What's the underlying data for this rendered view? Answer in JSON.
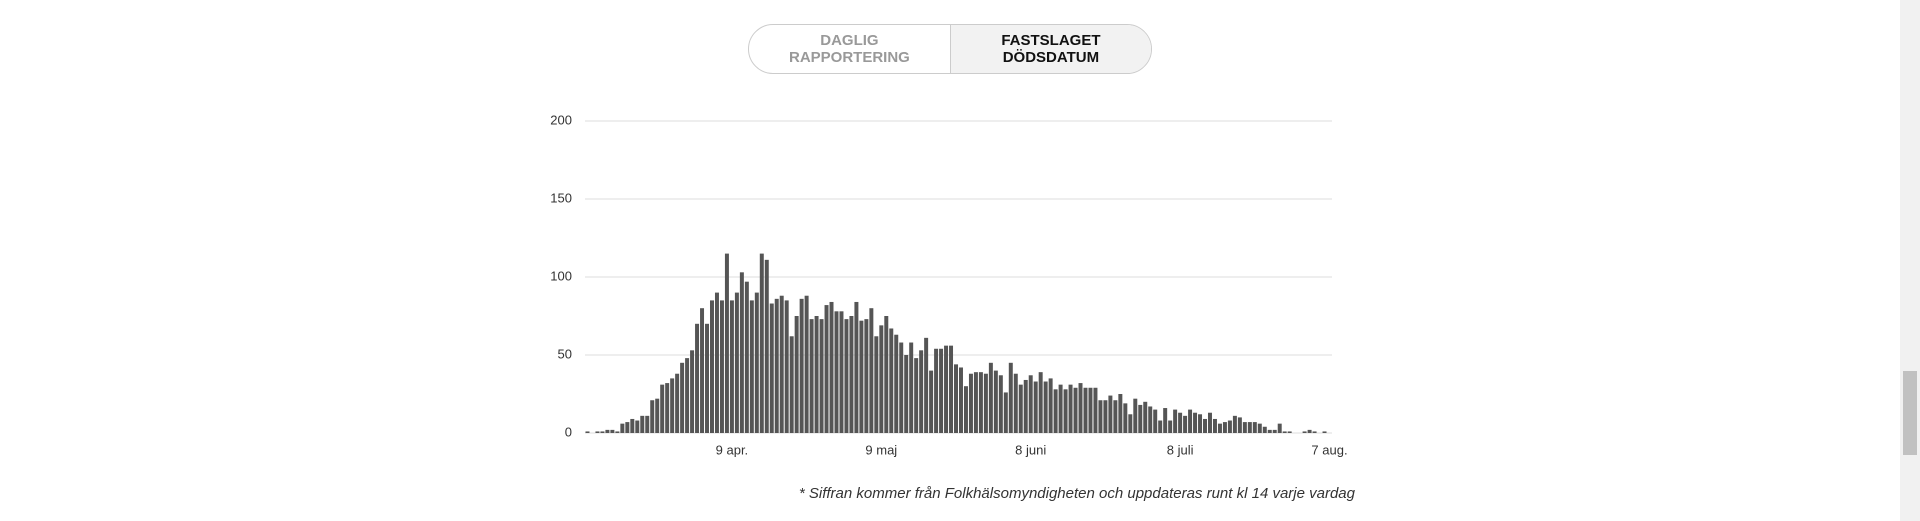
{
  "toggle": {
    "options": [
      "DAGLIG RAPPORTERING",
      "FASTSLAGET DÖDSDATUM"
    ]
  },
  "footnote": "* Siffran kommer från Folkhälsomyndigheten och uppdateras runt kl 14 varje vardag",
  "chart_data": {
    "type": "bar",
    "color": "#555555",
    "grid": true,
    "ylim": [
      0,
      200
    ],
    "yticks": [
      0,
      50,
      100,
      150,
      200
    ],
    "categories": [
      null,
      null,
      null,
      null,
      null,
      null,
      null,
      null,
      null,
      null,
      null,
      null,
      null,
      null,
      null,
      null,
      null,
      null,
      null,
      null,
      null,
      null,
      null,
      null,
      null,
      null,
      null,
      null,
      null,
      "9 apr.",
      null,
      null,
      null,
      null,
      null,
      null,
      null,
      null,
      null,
      null,
      null,
      null,
      null,
      null,
      null,
      null,
      null,
      null,
      null,
      null,
      null,
      null,
      null,
      null,
      null,
      null,
      null,
      null,
      null,
      "9 maj",
      null,
      null,
      null,
      null,
      null,
      null,
      null,
      null,
      null,
      null,
      null,
      null,
      null,
      null,
      null,
      null,
      null,
      null,
      null,
      null,
      null,
      null,
      null,
      null,
      null,
      null,
      null,
      null,
      null,
      "8 juni",
      null,
      null,
      null,
      null,
      null,
      null,
      null,
      null,
      null,
      null,
      null,
      null,
      null,
      null,
      null,
      null,
      null,
      null,
      null,
      null,
      null,
      null,
      null,
      null,
      null,
      null,
      null,
      null,
      null,
      "8 juli",
      null,
      null,
      null,
      null,
      null,
      null,
      null,
      null,
      null,
      null,
      null,
      null,
      null,
      null,
      null,
      null,
      null,
      null,
      null,
      null,
      null,
      null,
      null,
      null,
      null,
      null,
      null,
      null,
      null,
      "7 aug."
    ],
    "values": [
      1,
      0,
      1,
      1,
      2,
      2,
      1,
      6,
      7,
      9,
      8,
      11,
      11,
      21,
      22,
      31,
      32,
      35,
      38,
      45,
      48,
      53,
      70,
      80,
      70,
      85,
      90,
      85,
      115,
      85,
      90,
      103,
      97,
      85,
      90,
      115,
      111,
      83,
      86,
      88,
      85,
      62,
      75,
      86,
      88,
      73,
      75,
      73,
      82,
      84,
      78,
      78,
      73,
      75,
      84,
      72,
      73,
      80,
      62,
      69,
      75,
      67,
      63,
      58,
      50,
      58,
      48,
      53,
      61,
      40,
      54,
      54,
      56,
      56,
      44,
      42,
      30,
      38,
      39,
      39,
      38,
      45,
      40,
      37,
      26,
      45,
      38,
      31,
      34,
      37,
      33,
      39,
      33,
      35,
      28,
      31,
      28,
      31,
      29,
      32,
      29,
      29,
      29,
      21,
      21,
      24,
      21,
      25,
      19,
      12,
      22,
      18,
      20,
      17,
      15,
      8,
      16,
      8,
      15,
      13,
      11,
      15,
      13,
      12,
      9,
      13,
      9,
      6,
      7,
      8,
      11,
      10,
      7,
      7,
      7,
      6,
      4,
      2,
      2,
      6,
      1,
      1,
      0,
      0,
      1,
      2,
      1,
      0,
      1,
      0
    ]
  }
}
